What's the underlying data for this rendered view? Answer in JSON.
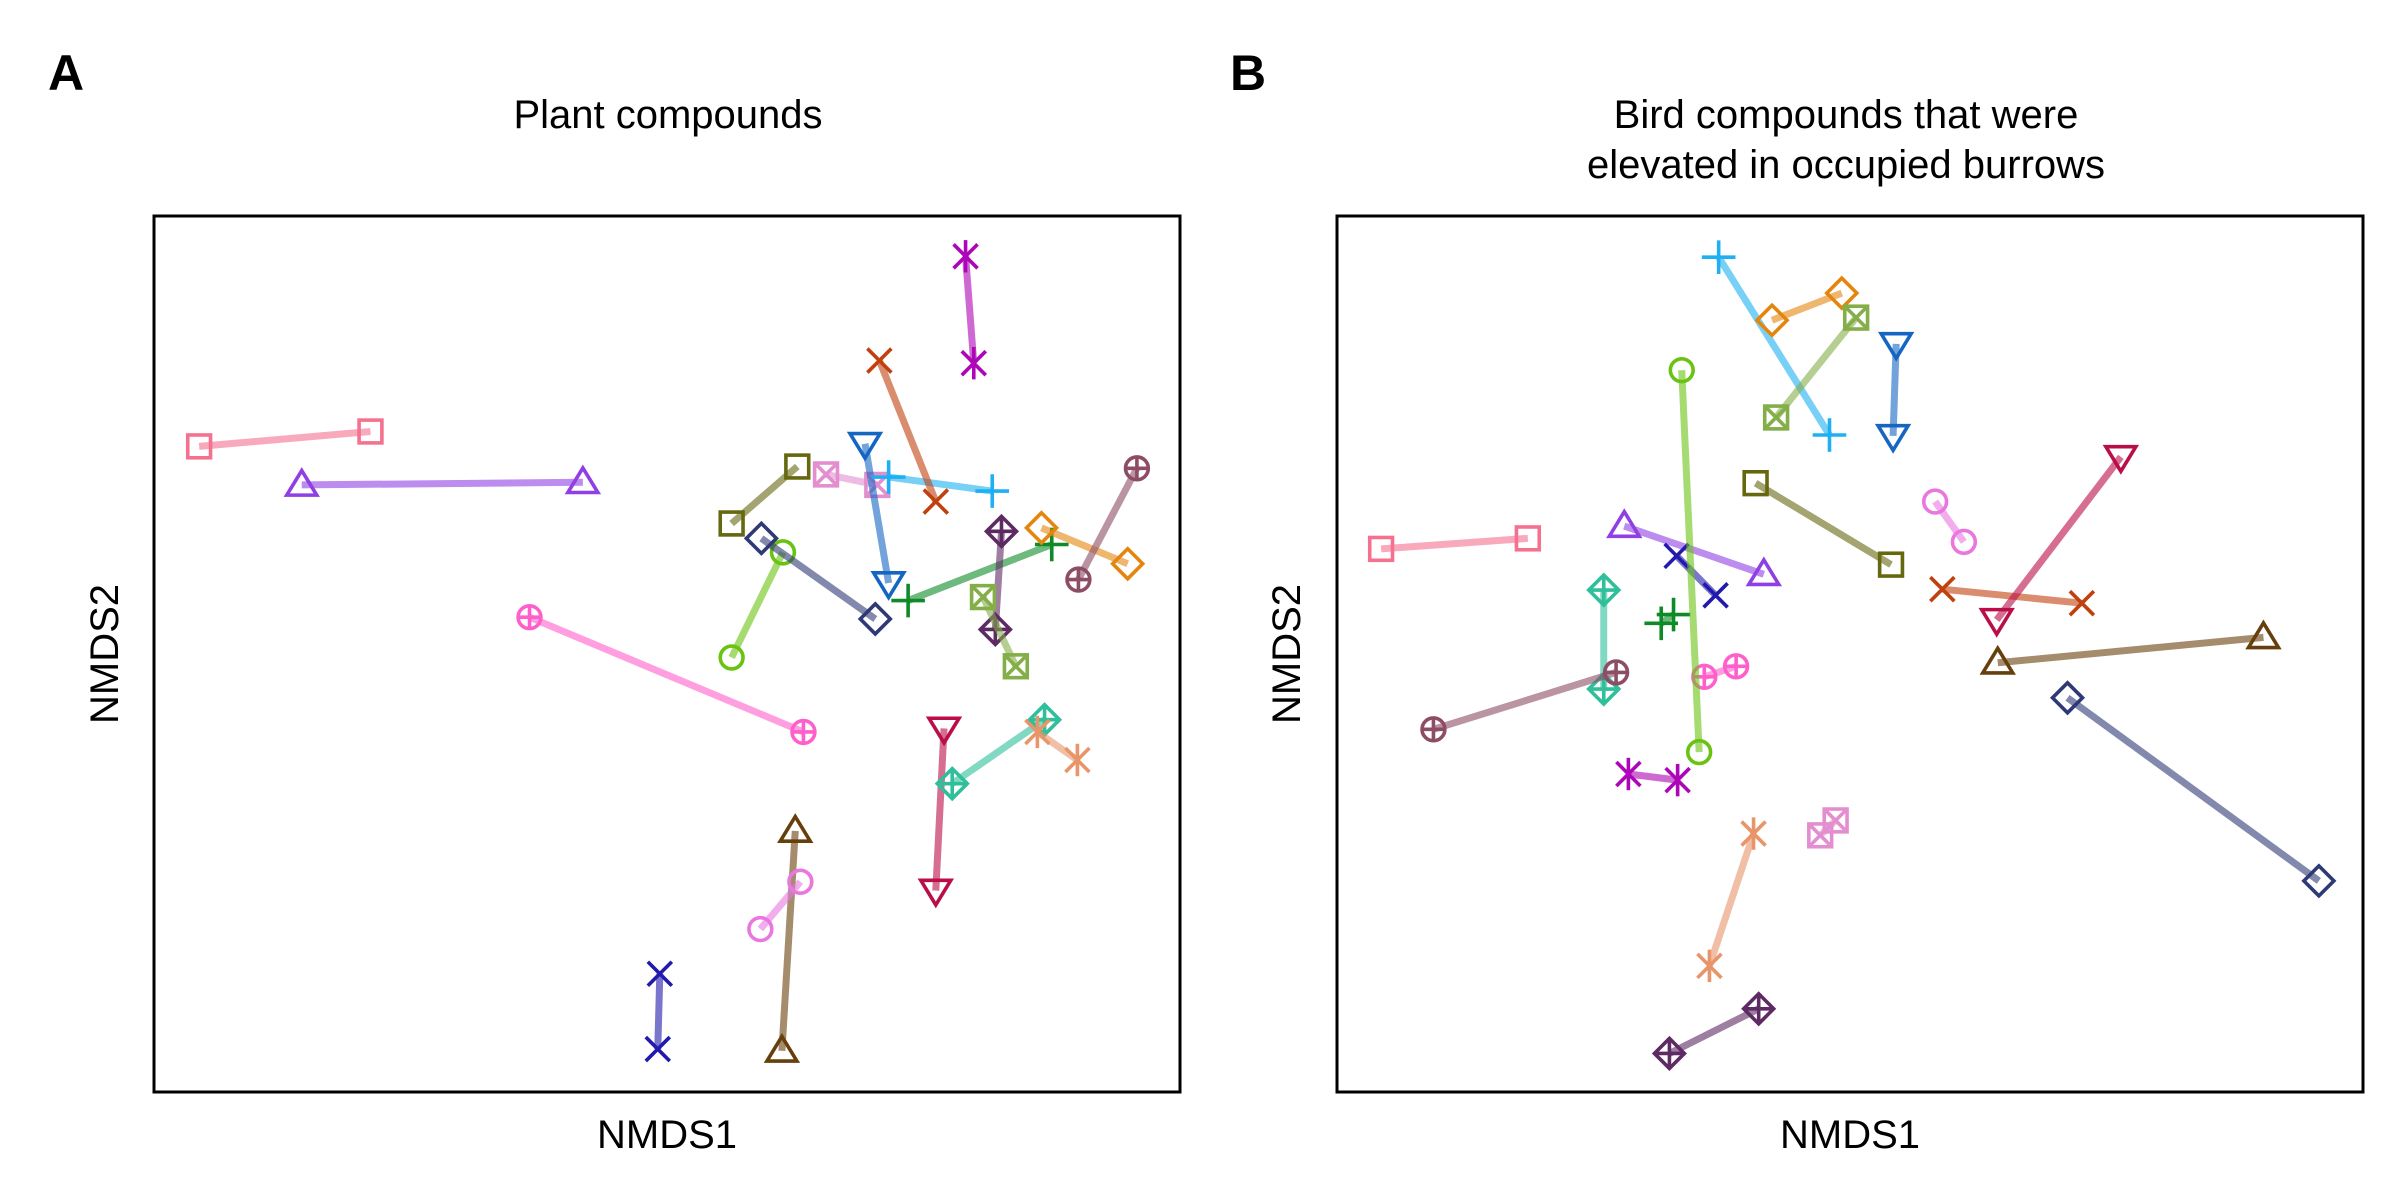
{
  "chart_data": [
    {
      "panel_label": "A",
      "type": "scatter",
      "title": "Plant compounds",
      "xlabel": "NMDS1",
      "ylabel": "NMDS2",
      "xlim": [
        0,
        100
      ],
      "ylim": [
        0,
        100
      ],
      "grid": false,
      "series": [
        {
          "color": "#f4728f",
          "marker": "square",
          "points": [
            [
              4.4,
              73.7
            ],
            [
              21.1,
              75.4
            ]
          ]
        },
        {
          "color": "#8f3fe3",
          "marker": "triangle-up",
          "points": [
            [
              14.4,
              69.3
            ],
            [
              41.8,
              69.6
            ]
          ]
        },
        {
          "color": "#ff5fcb",
          "marker": "circle-plus",
          "points": [
            [
              36.6,
              54.2
            ],
            [
              63.3,
              41.1
            ]
          ]
        },
        {
          "color": "#66680f",
          "marker": "square",
          "points": [
            [
              56.3,
              64.9
            ],
            [
              62.7,
              71.4
            ]
          ]
        },
        {
          "color": "#e38fcf",
          "marker": "square-x",
          "points": [
            [
              65.5,
              70.5
            ],
            [
              70.5,
              69.3
            ]
          ]
        },
        {
          "color": "#6ac312",
          "marker": "circle",
          "points": [
            [
              56.3,
              49.6
            ],
            [
              61.3,
              61.6
            ]
          ]
        },
        {
          "color": "#2e3a76",
          "marker": "diamond",
          "points": [
            [
              59.2,
              63.2
            ],
            [
              70.3,
              54.0
            ]
          ]
        },
        {
          "color": "#1566c3",
          "marker": "triangle-down",
          "points": [
            [
              69.3,
              74.0
            ],
            [
              71.6,
              58.1
            ]
          ]
        },
        {
          "color": "#1eb0f2",
          "marker": "plus",
          "points": [
            [
              71.6,
              70.2
            ],
            [
              81.7,
              68.6
            ]
          ]
        },
        {
          "color": "#c1410e",
          "marker": "x",
          "points": [
            [
              70.7,
              83.5
            ],
            [
              76.2,
              67.4
            ]
          ]
        },
        {
          "color": "#ad05b8",
          "marker": "asterisk",
          "points": [
            [
              79.1,
              95.4
            ],
            [
              79.9,
              83.2
            ]
          ]
        },
        {
          "color": "#0e8b27",
          "marker": "plus",
          "points": [
            [
              73.5,
              56.1
            ],
            [
              87.5,
              62.5
            ]
          ]
        },
        {
          "color": "#e4860e",
          "marker": "diamond",
          "points": [
            [
              86.5,
              64.4
            ],
            [
              94.9,
              60.3
            ]
          ]
        },
        {
          "color": "#8d4d65",
          "marker": "circle-plus",
          "points": [
            [
              90.1,
              58.5
            ],
            [
              95.8,
              71.2
            ]
          ]
        },
        {
          "color": "#5e2a63",
          "marker": "diamond-plus",
          "points": [
            [
              82.6,
              64.0
            ],
            [
              82.0,
              52.8
            ]
          ]
        },
        {
          "color": "#84ae48",
          "marker": "square-x",
          "points": [
            [
              80.8,
              56.5
            ],
            [
              84.0,
              48.6
            ]
          ]
        },
        {
          "color": "#ba0e4a",
          "marker": "triangle-down",
          "points": [
            [
              77.0,
              41.5
            ],
            [
              76.2,
              23.0
            ]
          ]
        },
        {
          "color": "#2fbf9b",
          "marker": "diamond-plus",
          "points": [
            [
              77.8,
              35.2
            ],
            [
              86.8,
              42.5
            ]
          ]
        },
        {
          "color": "#e8956a",
          "marker": "asterisk",
          "points": [
            [
              86.1,
              41.1
            ],
            [
              90.0,
              37.9
            ]
          ]
        },
        {
          "color": "#673f0c",
          "marker": "triangle-up",
          "points": [
            [
              62.5,
              29.8
            ],
            [
              61.2,
              4.7
            ]
          ]
        },
        {
          "color": "#ea77e0",
          "marker": "circle",
          "points": [
            [
              59.1,
              18.6
            ],
            [
              63.0,
              24.0
            ]
          ]
        },
        {
          "color": "#221aac",
          "marker": "x",
          "points": [
            [
              49.3,
              13.5
            ],
            [
              49.1,
              4.9
            ]
          ]
        }
      ]
    },
    {
      "panel_label": "B",
      "type": "scatter",
      "title": "Bird compounds that were elevated in occupied burrows",
      "title_lines": [
        "Bird compounds that were",
        "elevated in occupied burrows"
      ],
      "xlabel": "NMDS1",
      "ylabel": "NMDS2",
      "xlim": [
        0,
        100
      ],
      "ylim": [
        0,
        100
      ],
      "grid": false,
      "series": [
        {
          "color": "#f4728f",
          "marker": "square",
          "points": [
            [
              4.3,
              62.0
            ],
            [
              18.6,
              63.2
            ]
          ]
        },
        {
          "color": "#8f3fe3",
          "marker": "triangle-up",
          "points": [
            [
              28.0,
              64.6
            ],
            [
              41.6,
              59.1
            ]
          ]
        },
        {
          "color": "#221aac",
          "marker": "x",
          "points": [
            [
              33.1,
              61.2
            ],
            [
              36.9,
              56.7
            ]
          ]
        },
        {
          "color": "#2fbf9b",
          "marker": "diamond-plus",
          "points": [
            [
              26.0,
              57.3
            ],
            [
              26.0,
              46.0
            ]
          ]
        },
        {
          "color": "#0e8b27",
          "marker": "plus",
          "points": [
            [
              31.6,
              53.5
            ],
            [
              32.8,
              54.5
            ]
          ]
        },
        {
          "color": "#8d4d65",
          "marker": "circle-plus",
          "points": [
            [
              9.4,
              41.4
            ],
            [
              27.2,
              47.9
            ]
          ]
        },
        {
          "color": "#ff5fcb",
          "marker": "circle-plus",
          "points": [
            [
              35.8,
              47.4
            ],
            [
              38.9,
              48.6
            ]
          ]
        },
        {
          "color": "#6ac312",
          "marker": "circle",
          "points": [
            [
              33.6,
              82.4
            ],
            [
              35.3,
              38.8
            ]
          ]
        },
        {
          "color": "#ad05b8",
          "marker": "asterisk",
          "points": [
            [
              28.4,
              36.3
            ],
            [
              33.2,
              35.6
            ]
          ]
        },
        {
          "color": "#e8956a",
          "marker": "asterisk",
          "points": [
            [
              36.3,
              14.4
            ],
            [
              40.6,
              29.5
            ]
          ]
        },
        {
          "color": "#e38fcf",
          "marker": "square-x",
          "points": [
            [
              47.1,
              29.3
            ],
            [
              48.6,
              31.0
            ]
          ]
        },
        {
          "color": "#5e2a63",
          "marker": "diamond-plus",
          "points": [
            [
              32.4,
              4.4
            ],
            [
              41.1,
              9.5
            ]
          ]
        },
        {
          "color": "#1eb0f2",
          "marker": "plus",
          "points": [
            [
              37.2,
              95.3
            ],
            [
              48.0,
              75.0
            ]
          ]
        },
        {
          "color": "#e4860e",
          "marker": "diamond",
          "points": [
            [
              42.4,
              88.1
            ],
            [
              49.2,
              91.2
            ]
          ]
        },
        {
          "color": "#84ae48",
          "marker": "square-x",
          "points": [
            [
              42.8,
              77.0
            ],
            [
              50.6,
              88.4
            ]
          ]
        },
        {
          "color": "#1566c3",
          "marker": "triangle-down",
          "points": [
            [
              54.5,
              85.4
            ],
            [
              54.2,
              74.9
            ]
          ]
        },
        {
          "color": "#66680f",
          "marker": "square",
          "points": [
            [
              40.8,
              69.5
            ],
            [
              54.0,
              60.2
            ]
          ]
        },
        {
          "color": "#ea77e0",
          "marker": "circle",
          "points": [
            [
              58.3,
              67.4
            ],
            [
              61.1,
              62.8
            ]
          ]
        },
        {
          "color": "#c1410e",
          "marker": "x",
          "points": [
            [
              59.0,
              57.4
            ],
            [
              72.6,
              55.8
            ]
          ]
        },
        {
          "color": "#ba0e4a",
          "marker": "triangle-down",
          "points": [
            [
              64.3,
              53.9
            ],
            [
              76.4,
              72.5
            ]
          ]
        },
        {
          "color": "#673f0c",
          "marker": "triangle-up",
          "points": [
            [
              64.4,
              49.0
            ],
            [
              90.3,
              51.9
            ]
          ]
        },
        {
          "color": "#2e3a76",
          "marker": "diamond",
          "points": [
            [
              71.2,
              45.0
            ],
            [
              95.7,
              24.1
            ]
          ]
        }
      ]
    }
  ]
}
